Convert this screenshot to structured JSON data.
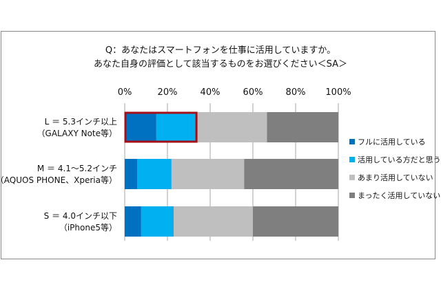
{
  "chart_data": {
    "type": "bar",
    "stacked": true,
    "orientation": "horizontal",
    "title": [
      "Q：あなたはスマートフォンを仕事に活用していますか。",
      "あなた自身の評価として該当するものをお選びください＜SA＞"
    ],
    "categories": [
      [
        "L ＝ 5.3インチ以上",
        "（GALAXY Note等）"
      ],
      [
        "M ＝ 4.1～5.2インチ",
        "（AQUOS PHONE、Xperia等）"
      ],
      [
        "S ＝ 4.0インチ以下",
        "（iPhone5等）"
      ]
    ],
    "series": [
      {
        "name": "フルに活用している",
        "color": "#0070C0",
        "values": [
          14.8,
          5.8,
          7.7
        ]
      },
      {
        "name": "活用している方だと思う",
        "color": "#00B0F0",
        "values": [
          19.1,
          16.1,
          15.2
        ]
      },
      {
        "name": "あまり活用していない",
        "color": "#BFBFBF",
        "values": [
          32.7,
          34.0,
          37.1
        ]
      },
      {
        "name": "まったく活用していない",
        "color": "#7F7F7F",
        "values": [
          33.4,
          44.1,
          40.0
        ]
      }
    ],
    "xticks": [
      "0%",
      "20%",
      "40%",
      "60%",
      "80%",
      "100%"
    ],
    "xlim": [
      0,
      100
    ],
    "grid": true,
    "legend": "right",
    "highlight": {
      "category_index": 0,
      "series": [
        0,
        1
      ],
      "color": "#A50F15"
    }
  }
}
